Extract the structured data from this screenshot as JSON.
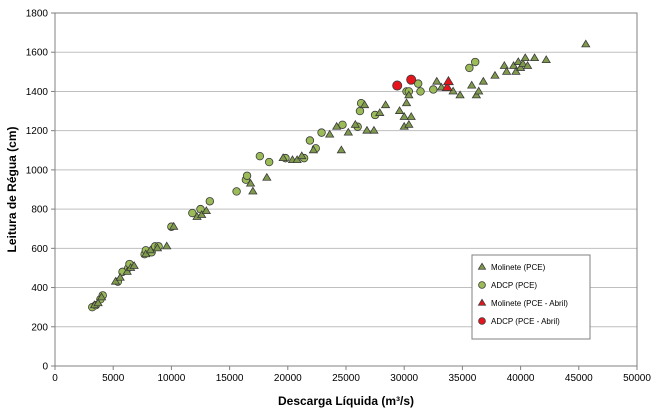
{
  "colors": {
    "molinete": "#7f9a4c",
    "adcp": "#9bbb59",
    "molinete_abril": "#e8141c",
    "adcp_abril": "#e8141c",
    "grid": "#bfbfbf",
    "marker_edge": "#3a3a3a"
  },
  "chart_data": {
    "type": "scatter",
    "xlabel": "Descarga Líquida (m³/s)",
    "ylabel": "Leitura de Régua (cm)",
    "xlim": [
      0,
      50000
    ],
    "ylim": [
      0,
      1800
    ],
    "x_ticks": [
      "0",
      "5000",
      "10000",
      "15000",
      "20000",
      "25000",
      "30000",
      "35000",
      "40000",
      "45000",
      "50000"
    ],
    "y_ticks": [
      "0",
      "200",
      "400",
      "600",
      "800",
      "1000",
      "1200",
      "1400",
      "1600",
      "1800"
    ],
    "grid": "horizontal",
    "legend_position": "bottom-right",
    "series": [
      {
        "name": "Molinete (PCE)",
        "marker": "triangle",
        "points": [
          [
            3400,
            310
          ],
          [
            3700,
            320
          ],
          [
            4000,
            350
          ],
          [
            5200,
            430
          ],
          [
            5600,
            450
          ],
          [
            6200,
            480
          ],
          [
            6500,
            500
          ],
          [
            6800,
            510
          ],
          [
            7800,
            570
          ],
          [
            8200,
            590
          ],
          [
            8800,
            600
          ],
          [
            9600,
            610
          ],
          [
            10200,
            710
          ],
          [
            12200,
            760
          ],
          [
            12600,
            770
          ],
          [
            13000,
            790
          ],
          [
            16800,
            930
          ],
          [
            17000,
            890
          ],
          [
            18200,
            960
          ],
          [
            19600,
            1060
          ],
          [
            20400,
            1050
          ],
          [
            20800,
            1050
          ],
          [
            21200,
            1070
          ],
          [
            22200,
            1100
          ],
          [
            23600,
            1180
          ],
          [
            24200,
            1220
          ],
          [
            24600,
            1100
          ],
          [
            25200,
            1190
          ],
          [
            25800,
            1230
          ],
          [
            26600,
            1330
          ],
          [
            26800,
            1200
          ],
          [
            27400,
            1200
          ],
          [
            27900,
            1290
          ],
          [
            28400,
            1330
          ],
          [
            29600,
            1300
          ],
          [
            30000,
            1220
          ],
          [
            30000,
            1270
          ],
          [
            30200,
            1340
          ],
          [
            30400,
            1380
          ],
          [
            30400,
            1230
          ],
          [
            30600,
            1270
          ],
          [
            32800,
            1450
          ],
          [
            33200,
            1420
          ],
          [
            34200,
            1400
          ],
          [
            34800,
            1380
          ],
          [
            35800,
            1430
          ],
          [
            36200,
            1380
          ],
          [
            36400,
            1400
          ],
          [
            36800,
            1450
          ],
          [
            37800,
            1480
          ],
          [
            38600,
            1530
          ],
          [
            38800,
            1500
          ],
          [
            39400,
            1530
          ],
          [
            39600,
            1500
          ],
          [
            39800,
            1550
          ],
          [
            40000,
            1520
          ],
          [
            40200,
            1540
          ],
          [
            40400,
            1570
          ],
          [
            40600,
            1530
          ],
          [
            41200,
            1570
          ],
          [
            42200,
            1560
          ],
          [
            45600,
            1640
          ]
        ]
      },
      {
        "name": "ADCP (PCE)",
        "marker": "circle",
        "points": [
          [
            3200,
            300
          ],
          [
            3500,
            310
          ],
          [
            3900,
            340
          ],
          [
            4100,
            360
          ],
          [
            5400,
            430
          ],
          [
            5800,
            480
          ],
          [
            6300,
            500
          ],
          [
            6400,
            520
          ],
          [
            7700,
            570
          ],
          [
            7800,
            590
          ],
          [
            8300,
            580
          ],
          [
            8600,
            610
          ],
          [
            8900,
            610
          ],
          [
            10000,
            710
          ],
          [
            11800,
            780
          ],
          [
            12500,
            800
          ],
          [
            13300,
            840
          ],
          [
            15600,
            890
          ],
          [
            16400,
            950
          ],
          [
            16500,
            970
          ],
          [
            17600,
            1070
          ],
          [
            18400,
            1040
          ],
          [
            19800,
            1060
          ],
          [
            21400,
            1060
          ],
          [
            21900,
            1150
          ],
          [
            22400,
            1110
          ],
          [
            22900,
            1190
          ],
          [
            24700,
            1230
          ],
          [
            26000,
            1220
          ],
          [
            26200,
            1300
          ],
          [
            26300,
            1340
          ],
          [
            27500,
            1280
          ],
          [
            30200,
            1400
          ],
          [
            30400,
            1400
          ],
          [
            31200,
            1440
          ],
          [
            31400,
            1400
          ],
          [
            32500,
            1410
          ],
          [
            35600,
            1520
          ],
          [
            36100,
            1550
          ]
        ]
      },
      {
        "name": "Molinete (PCE - Abril)",
        "marker": "triangle",
        "points": [
          [
            33700,
            1420
          ],
          [
            33800,
            1450
          ]
        ]
      },
      {
        "name": "ADCP (PCE - Abril)",
        "marker": "circle",
        "points": [
          [
            29400,
            1430
          ],
          [
            30600,
            1460
          ]
        ]
      }
    ]
  }
}
